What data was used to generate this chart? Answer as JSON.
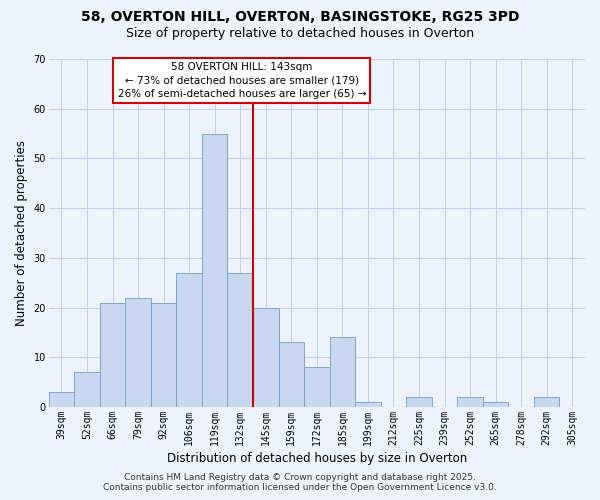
{
  "title": "58, OVERTON HILL, OVERTON, BASINGSTOKE, RG25 3PD",
  "subtitle": "Size of property relative to detached houses in Overton",
  "xlabel": "Distribution of detached houses by size in Overton",
  "ylabel": "Number of detached properties",
  "categories": [
    "39sqm",
    "52sqm",
    "66sqm",
    "79sqm",
    "92sqm",
    "106sqm",
    "119sqm",
    "132sqm",
    "145sqm",
    "159sqm",
    "172sqm",
    "185sqm",
    "199sqm",
    "212sqm",
    "225sqm",
    "239sqm",
    "252sqm",
    "265sqm",
    "278sqm",
    "292sqm",
    "305sqm"
  ],
  "values": [
    3,
    7,
    21,
    22,
    21,
    27,
    55,
    27,
    20,
    13,
    8,
    14,
    1,
    0,
    2,
    0,
    2,
    1,
    0,
    2,
    0
  ],
  "bar_color": "#c8d8f0",
  "bar_edge_color": "#7aA8cc",
  "highlight_color": "#cc0000",
  "highlight_index": 8,
  "ylim": [
    0,
    70
  ],
  "yticks": [
    0,
    10,
    20,
    30,
    40,
    50,
    60,
    70
  ],
  "annotation_title": "58 OVERTON HILL: 143sqm",
  "annotation_line1": "← 73% of detached houses are smaller (179)",
  "annotation_line2": "26% of semi-detached houses are larger (65) →",
  "annotation_box_color": "#ffffff",
  "annotation_box_edge": "#cc0000",
  "footer1": "Contains HM Land Registry data © Crown copyright and database right 2025.",
  "footer2": "Contains public sector information licensed under the Open Government Licence v3.0.",
  "background_color": "#eef2fb",
  "grid_color": "#c8d0e8",
  "title_fontsize": 10,
  "subtitle_fontsize": 9,
  "axis_label_fontsize": 8.5,
  "tick_fontsize": 7,
  "annotation_fontsize": 7.5,
  "footer_fontsize": 6.5
}
